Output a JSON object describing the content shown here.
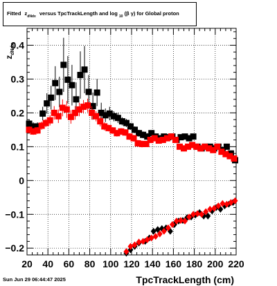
{
  "title": {
    "prefix": "Fitted",
    "z": "z",
    "z_sub": "dNdx",
    "middle": "versus TpcTrackLength and log",
    "log_sub": "10",
    "bg": "(β  γ)",
    "suffix": "for Global proton"
  },
  "footer_date": "Sun Jun 29 06:44:47 2025",
  "chart_data": {
    "type": "scatter",
    "xlabel": "TpcTrackLength (cm)",
    "ylabel": "z_dNdx",
    "ylabel_main": "z",
    "ylabel_sub": "dNdx",
    "xlim": [
      20,
      220
    ],
    "ylim": [
      -0.22,
      0.45
    ],
    "x_ticks": [
      20,
      40,
      60,
      80,
      100,
      120,
      140,
      160,
      180,
      200,
      220
    ],
    "y_ticks": [
      -0.2,
      -0.1,
      0,
      0.1,
      0.2,
      0.3,
      0.4
    ],
    "y_tick_labels": [
      "−0.2",
      "−0.1",
      "0",
      "0.1",
      "0.2",
      "0.3",
      "0.4"
    ],
    "grid": true,
    "colors": {
      "black_series": "#000000",
      "red_series": "#ff0000"
    },
    "series": [
      {
        "marker": "square",
        "color": "#000000",
        "points": [
          {
            "x": 22,
            "y": 0.168,
            "e": 0.012
          },
          {
            "x": 26,
            "y": 0.16,
            "e": 0.012
          },
          {
            "x": 30,
            "y": 0.16,
            "e": 0.012
          },
          {
            "x": 35,
            "y": 0.198,
            "e": 0.02
          },
          {
            "x": 39,
            "y": 0.228,
            "e": 0.03
          },
          {
            "x": 43,
            "y": 0.245,
            "e": 0.035
          },
          {
            "x": 47,
            "y": 0.288,
            "e": 0.05
          },
          {
            "x": 51,
            "y": 0.262,
            "e": 0.045
          },
          {
            "x": 55,
            "y": 0.342,
            "e": 0.08
          },
          {
            "x": 59,
            "y": 0.298,
            "e": 0.07
          },
          {
            "x": 63,
            "y": 0.282,
            "e": 0.06
          },
          {
            "x": 67,
            "y": 0.24,
            "e": 0.05
          },
          {
            "x": 71,
            "y": 0.312,
            "e": 0.07
          },
          {
            "x": 75,
            "y": 0.328,
            "e": 0.07
          },
          {
            "x": 79,
            "y": 0.262,
            "e": 0.05
          },
          {
            "x": 83,
            "y": 0.22,
            "e": 0.04
          },
          {
            "x": 87,
            "y": 0.26,
            "e": 0.04
          },
          {
            "x": 91,
            "y": 0.2,
            "e": 0.03
          },
          {
            "x": 95,
            "y": 0.193,
            "e": 0.02
          },
          {
            "x": 99,
            "y": 0.198,
            "e": 0.02
          },
          {
            "x": 103,
            "y": 0.19,
            "e": 0.015
          },
          {
            "x": 107,
            "y": 0.185,
            "e": 0.015
          },
          {
            "x": 111,
            "y": 0.175,
            "e": 0.012
          },
          {
            "x": 115,
            "y": 0.17,
            "e": 0.012
          },
          {
            "x": 119,
            "y": 0.16,
            "e": 0.01
          },
          {
            "x": 123,
            "y": 0.15,
            "e": 0.01
          },
          {
            "x": 127,
            "y": 0.14,
            "e": 0.01
          },
          {
            "x": 131,
            "y": 0.135,
            "e": 0.01
          },
          {
            "x": 135,
            "y": 0.13,
            "e": 0.01
          },
          {
            "x": 139,
            "y": 0.14,
            "e": 0.008
          },
          {
            "x": 143,
            "y": 0.13,
            "e": 0.008
          },
          {
            "x": 147,
            "y": 0.125,
            "e": 0.008
          },
          {
            "x": 151,
            "y": 0.13,
            "e": 0.008
          },
          {
            "x": 155,
            "y": 0.128,
            "e": 0.008
          },
          {
            "x": 159,
            "y": 0.13,
            "e": 0.008
          },
          {
            "x": 163,
            "y": 0.12,
            "e": 0.008
          },
          {
            "x": 167,
            "y": 0.128,
            "e": 0.008
          },
          {
            "x": 171,
            "y": 0.13,
            "e": 0.008
          },
          {
            "x": 175,
            "y": 0.125,
            "e": 0.008
          },
          {
            "x": 179,
            "y": 0.13,
            "e": 0.008
          },
          {
            "x": 183,
            "y": 0.1,
            "e": 0.008
          },
          {
            "x": 187,
            "y": 0.095,
            "e": 0.008
          },
          {
            "x": 191,
            "y": 0.1,
            "e": 0.008
          },
          {
            "x": 195,
            "y": 0.1,
            "e": 0.008
          },
          {
            "x": 199,
            "y": 0.095,
            "e": 0.008
          },
          {
            "x": 203,
            "y": 0.1,
            "e": 0.008
          },
          {
            "x": 207,
            "y": 0.09,
            "e": 0.008
          },
          {
            "x": 211,
            "y": 0.1,
            "e": 0.008
          },
          {
            "x": 215,
            "y": 0.08,
            "e": 0.008
          },
          {
            "x": 219,
            "y": 0.06,
            "e": 0.008
          }
        ]
      },
      {
        "marker": "square",
        "color": "#ff0000",
        "points": [
          {
            "x": 22,
            "y": 0.15,
            "e": 0.01
          },
          {
            "x": 26,
            "y": 0.145,
            "e": 0.01
          },
          {
            "x": 30,
            "y": 0.148,
            "e": 0.01
          },
          {
            "x": 34,
            "y": 0.162,
            "e": 0.012
          },
          {
            "x": 38,
            "y": 0.17,
            "e": 0.012
          },
          {
            "x": 42,
            "y": 0.178,
            "e": 0.015
          },
          {
            "x": 46,
            "y": 0.2,
            "e": 0.02
          },
          {
            "x": 50,
            "y": 0.19,
            "e": 0.02
          },
          {
            "x": 54,
            "y": 0.215,
            "e": 0.025
          },
          {
            "x": 58,
            "y": 0.21,
            "e": 0.025
          },
          {
            "x": 62,
            "y": 0.188,
            "e": 0.02
          },
          {
            "x": 66,
            "y": 0.2,
            "e": 0.02
          },
          {
            "x": 70,
            "y": 0.21,
            "e": 0.02
          },
          {
            "x": 74,
            "y": 0.218,
            "e": 0.02
          },
          {
            "x": 78,
            "y": 0.222,
            "e": 0.02
          },
          {
            "x": 82,
            "y": 0.2,
            "e": 0.02
          },
          {
            "x": 86,
            "y": 0.19,
            "e": 0.015
          },
          {
            "x": 90,
            "y": 0.175,
            "e": 0.015
          },
          {
            "x": 94,
            "y": 0.16,
            "e": 0.012
          },
          {
            "x": 98,
            "y": 0.155,
            "e": 0.01
          },
          {
            "x": 102,
            "y": 0.148,
            "e": 0.01
          },
          {
            "x": 106,
            "y": 0.14,
            "e": 0.01
          },
          {
            "x": 110,
            "y": 0.145,
            "e": 0.01
          },
          {
            "x": 114,
            "y": 0.142,
            "e": 0.01
          },
          {
            "x": 118,
            "y": 0.13,
            "e": 0.01
          },
          {
            "x": 122,
            "y": 0.125,
            "e": 0.01
          },
          {
            "x": 126,
            "y": 0.11,
            "e": 0.01
          },
          {
            "x": 130,
            "y": 0.108,
            "e": 0.01
          },
          {
            "x": 134,
            "y": 0.108,
            "e": 0.008
          },
          {
            "x": 138,
            "y": 0.12,
            "e": 0.008
          },
          {
            "x": 142,
            "y": 0.125,
            "e": 0.008
          },
          {
            "x": 146,
            "y": 0.118,
            "e": 0.008
          },
          {
            "x": 150,
            "y": 0.12,
            "e": 0.008
          },
          {
            "x": 154,
            "y": 0.125,
            "e": 0.008
          },
          {
            "x": 158,
            "y": 0.13,
            "e": 0.008
          },
          {
            "x": 162,
            "y": 0.12,
            "e": 0.008
          },
          {
            "x": 166,
            "y": 0.1,
            "e": 0.008
          },
          {
            "x": 170,
            "y": 0.095,
            "e": 0.008
          },
          {
            "x": 174,
            "y": 0.1,
            "e": 0.008
          },
          {
            "x": 178,
            "y": 0.105,
            "e": 0.008
          },
          {
            "x": 182,
            "y": 0.1,
            "e": 0.008
          },
          {
            "x": 186,
            "y": 0.095,
            "e": 0.008
          },
          {
            "x": 190,
            "y": 0.1,
            "e": 0.008
          },
          {
            "x": 194,
            "y": 0.095,
            "e": 0.008
          },
          {
            "x": 198,
            "y": 0.09,
            "e": 0.008
          },
          {
            "x": 202,
            "y": 0.1,
            "e": 0.008
          },
          {
            "x": 206,
            "y": 0.085,
            "e": 0.008
          },
          {
            "x": 210,
            "y": 0.078,
            "e": 0.008
          },
          {
            "x": 214,
            "y": 0.072,
            "e": 0.008
          },
          {
            "x": 218,
            "y": 0.065,
            "e": 0.008
          }
        ]
      },
      {
        "marker": "diamond",
        "color": "#000000",
        "points": [
          {
            "x": 115,
            "y": -0.215
          },
          {
            "x": 119,
            "y": -0.205
          },
          {
            "x": 123,
            "y": -0.195
          },
          {
            "x": 127,
            "y": -0.185
          },
          {
            "x": 133,
            "y": -0.18
          },
          {
            "x": 137,
            "y": -0.17
          },
          {
            "x": 141,
            "y": -0.15
          },
          {
            "x": 145,
            "y": -0.145
          },
          {
            "x": 149,
            "y": -0.142
          },
          {
            "x": 153,
            "y": -0.14
          },
          {
            "x": 157,
            "y": -0.15
          },
          {
            "x": 161,
            "y": -0.13
          },
          {
            "x": 165,
            "y": -0.12
          },
          {
            "x": 169,
            "y": -0.118
          },
          {
            "x": 173,
            "y": -0.11
          },
          {
            "x": 177,
            "y": -0.108
          },
          {
            "x": 181,
            "y": -0.102
          },
          {
            "x": 185,
            "y": -0.095
          },
          {
            "x": 189,
            "y": -0.105
          },
          {
            "x": 193,
            "y": -0.105
          },
          {
            "x": 197,
            "y": -0.09
          },
          {
            "x": 201,
            "y": -0.08
          },
          {
            "x": 205,
            "y": -0.085
          },
          {
            "x": 209,
            "y": -0.075
          },
          {
            "x": 213,
            "y": -0.07
          },
          {
            "x": 217,
            "y": -0.065
          }
        ]
      },
      {
        "marker": "diamond",
        "color": "#ff0000",
        "points": [
          {
            "x": 115,
            "y": -0.21
          },
          {
            "x": 119,
            "y": -0.195
          },
          {
            "x": 123,
            "y": -0.19
          },
          {
            "x": 127,
            "y": -0.182
          },
          {
            "x": 131,
            "y": -0.18
          },
          {
            "x": 135,
            "y": -0.175
          },
          {
            "x": 139,
            "y": -0.17
          },
          {
            "x": 143,
            "y": -0.165
          },
          {
            "x": 147,
            "y": -0.158
          },
          {
            "x": 151,
            "y": -0.15
          },
          {
            "x": 155,
            "y": -0.14
          },
          {
            "x": 159,
            "y": -0.13
          },
          {
            "x": 163,
            "y": -0.12
          },
          {
            "x": 167,
            "y": -0.118
          },
          {
            "x": 171,
            "y": -0.12
          },
          {
            "x": 175,
            "y": -0.108
          },
          {
            "x": 179,
            "y": -0.1
          },
          {
            "x": 183,
            "y": -0.098
          },
          {
            "x": 187,
            "y": -0.1
          },
          {
            "x": 191,
            "y": -0.092
          },
          {
            "x": 195,
            "y": -0.085
          },
          {
            "x": 199,
            "y": -0.082
          },
          {
            "x": 203,
            "y": -0.075
          },
          {
            "x": 207,
            "y": -0.068
          },
          {
            "x": 211,
            "y": -0.07
          },
          {
            "x": 215,
            "y": -0.065
          },
          {
            "x": 219,
            "y": -0.06
          }
        ]
      }
    ]
  }
}
